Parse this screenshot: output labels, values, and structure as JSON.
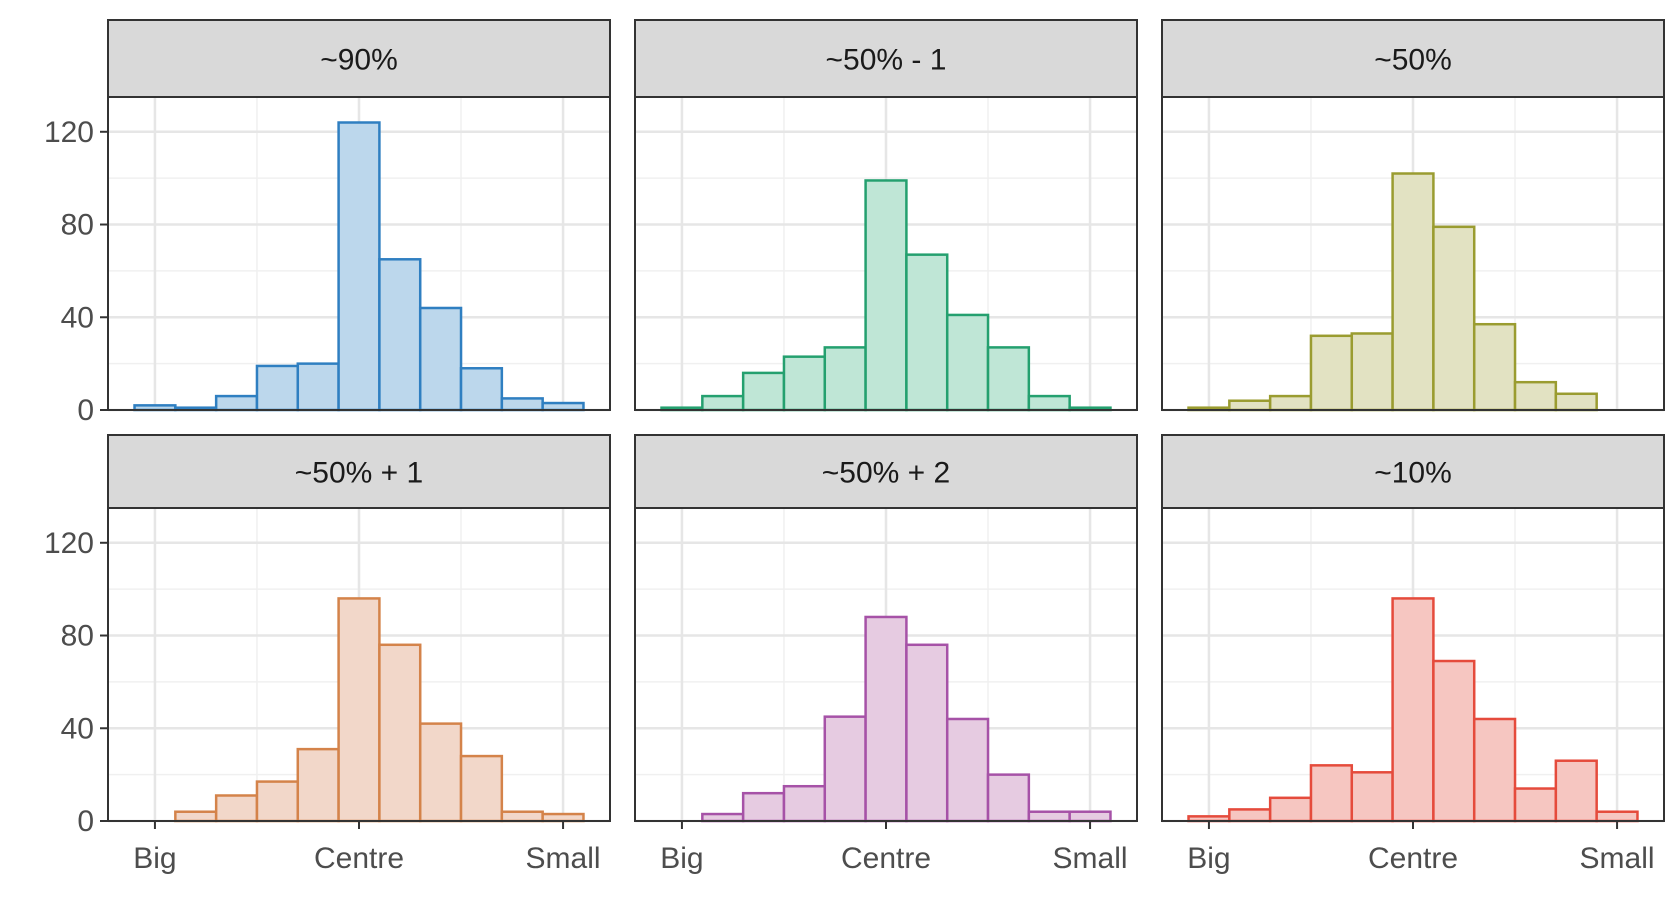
{
  "chart_data": {
    "type": "bar",
    "layout": "facet-grid 2x3",
    "x_tick_labels": [
      "Big",
      "Centre",
      "Small"
    ],
    "y_ticks": [
      0,
      40,
      80,
      120
    ],
    "ylim": [
      0,
      135
    ],
    "grid": true,
    "bin_count": 11,
    "panels": [
      {
        "title": "~90%",
        "color": "#2f7fc1",
        "fill": "#bcd7ec",
        "values": [
          2,
          1,
          6,
          19,
          20,
          124,
          65,
          44,
          18,
          5,
          3
        ]
      },
      {
        "title": "~50% - 1",
        "color": "#24a06f",
        "fill": "#bfe6d6",
        "values": [
          1,
          6,
          16,
          23,
          27,
          99,
          67,
          41,
          27,
          6,
          1
        ]
      },
      {
        "title": "~50%",
        "color": "#9a9c30",
        "fill": "#e2e2c2",
        "values": [
          1,
          4,
          6,
          32,
          33,
          102,
          79,
          37,
          12,
          7,
          0
        ]
      },
      {
        "title": "~50% + 1",
        "color": "#d4834a",
        "fill": "#f2d7c9",
        "values": [
          0,
          4,
          11,
          17,
          31,
          96,
          76,
          42,
          28,
          4,
          3
        ]
      },
      {
        "title": "~50% + 2",
        "color": "#a652a7",
        "fill": "#e6cbe1",
        "values": [
          0,
          3,
          12,
          15,
          45,
          88,
          76,
          44,
          20,
          4,
          4
        ]
      },
      {
        "title": "~10%",
        "color": "#e54b3c",
        "fill": "#f6c6c1",
        "values": [
          2,
          5,
          10,
          24,
          21,
          96,
          69,
          44,
          14,
          26,
          4
        ]
      }
    ]
  }
}
